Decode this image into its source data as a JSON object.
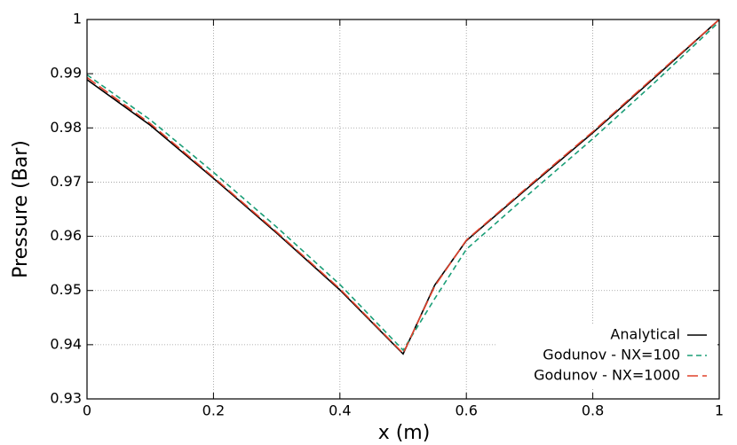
{
  "chart_data": {
    "type": "line",
    "x_label": "x (m)",
    "y_label": "Pressure (Bar)",
    "x": [
      0,
      0.1,
      0.2,
      0.3,
      0.4,
      0.5,
      0.55,
      0.6,
      0.7,
      0.8,
      0.9,
      1
    ],
    "series": [
      {
        "name": "Analytical",
        "color": "#000000",
        "values": [
          0.9889,
          0.9805,
          0.9707,
          0.9606,
          0.9501,
          0.9383,
          0.951,
          0.9592,
          0.9692,
          0.9791,
          0.9895,
          1.0
        ]
      },
      {
        "name": "Godunov - NX=100",
        "color": "#1a9e77",
        "values": [
          0.9898,
          0.9815,
          0.9718,
          0.9617,
          0.9511,
          0.939,
          0.9485,
          0.9576,
          0.9679,
          0.978,
          0.9886,
          0.9996
        ]
      },
      {
        "name": "Godunov - NX=1000",
        "color": "#e0402a",
        "values": [
          0.9893,
          0.9808,
          0.9709,
          0.9608,
          0.9503,
          0.9384,
          0.9508,
          0.9593,
          0.9694,
          0.9793,
          0.9897,
          1.0
        ]
      }
    ],
    "xlim": [
      0,
      1
    ],
    "ylim": [
      0.93,
      1
    ],
    "xticks": [
      0,
      0.2,
      0.4,
      0.6,
      0.8,
      1
    ],
    "yticks": [
      0.93,
      0.94,
      0.95,
      0.96,
      0.97,
      0.98,
      0.99,
      1
    ],
    "grid": true,
    "legend": "lower right"
  }
}
